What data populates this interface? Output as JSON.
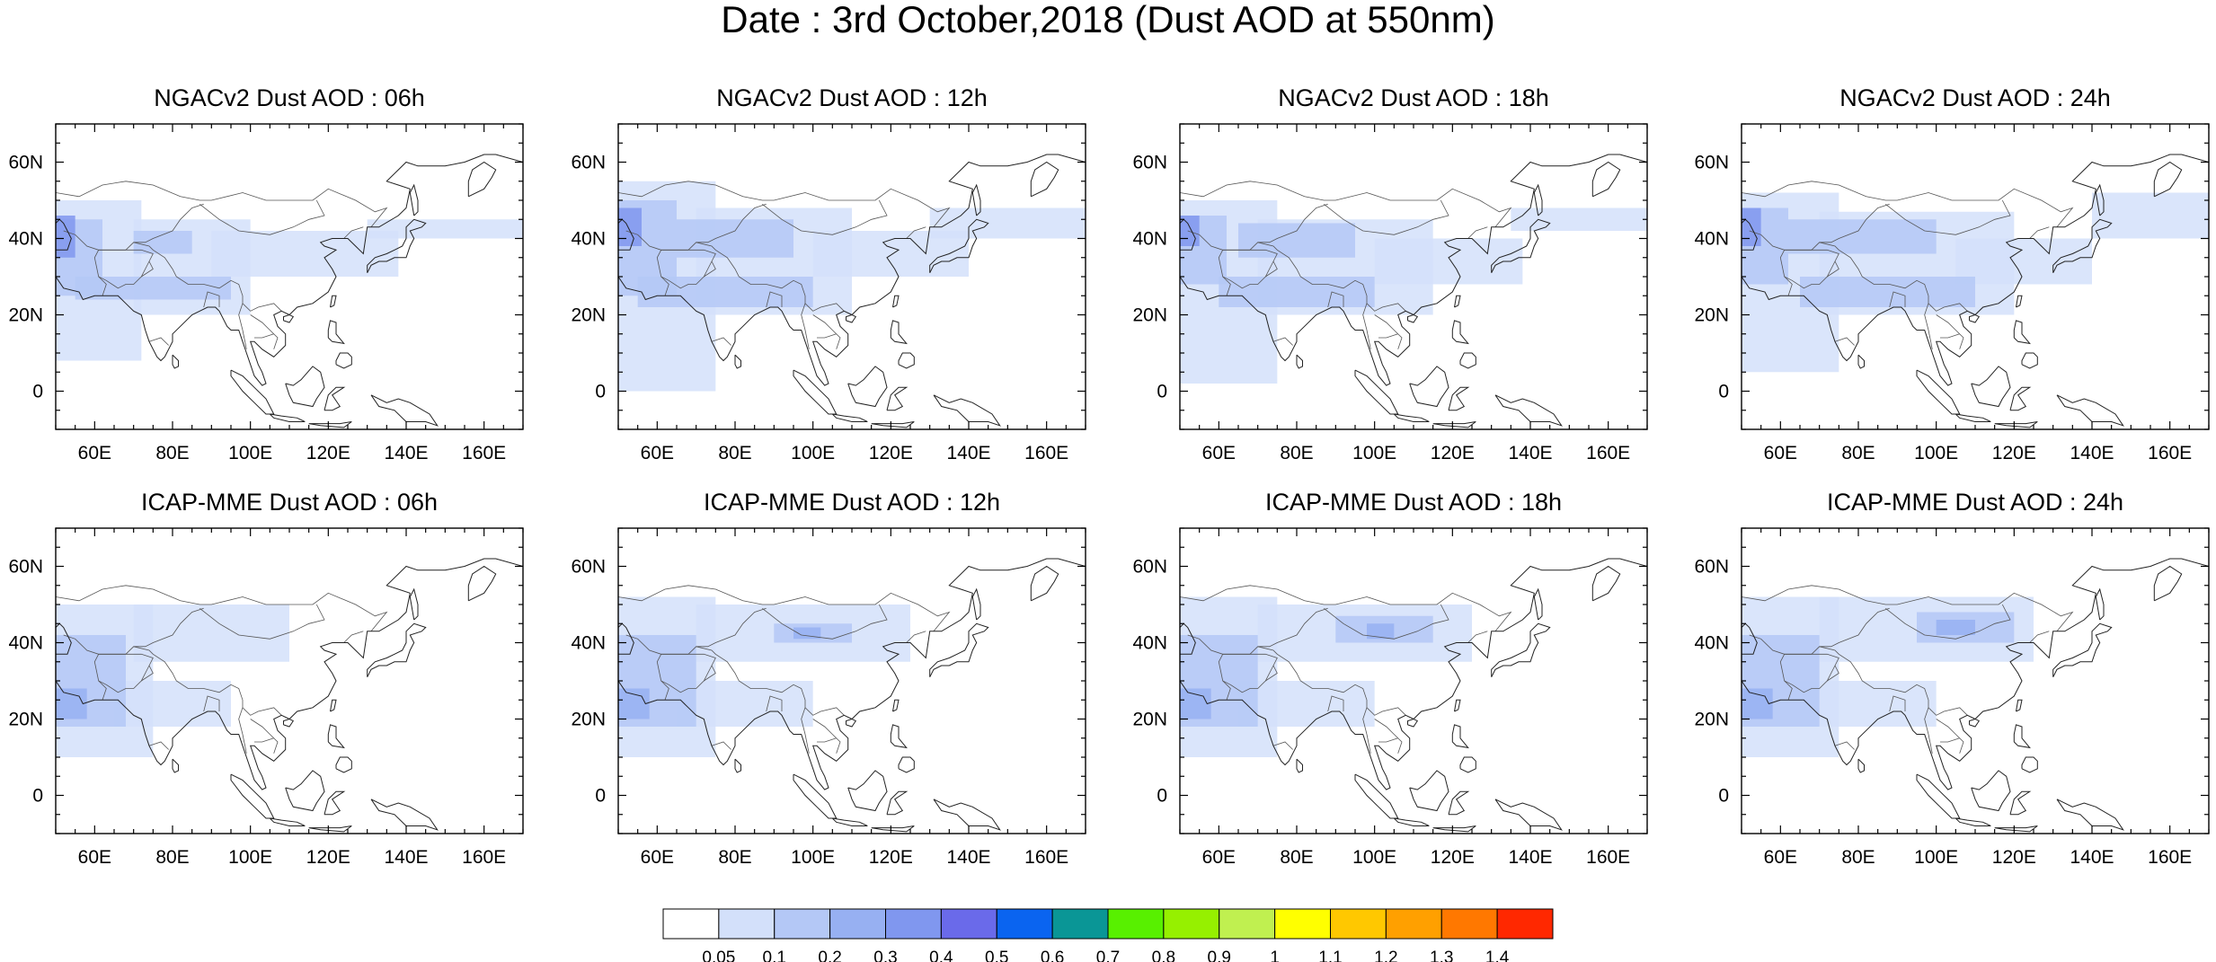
{
  "figure": {
    "title": "Date : 3rd October,2018 (Dust AOD at 550nm)"
  },
  "map": {
    "lon_range": [
      50,
      170
    ],
    "lat_range": [
      -10,
      70
    ],
    "lon_ticks": [
      {
        "value": 60,
        "label": "60E"
      },
      {
        "value": 80,
        "label": "80E"
      },
      {
        "value": 100,
        "label": "100E"
      },
      {
        "value": 120,
        "label": "120E"
      },
      {
        "value": 140,
        "label": "140E"
      },
      {
        "value": 160,
        "label": "160E"
      }
    ],
    "lat_ticks": [
      {
        "value": 60,
        "label": "60N"
      },
      {
        "value": 40,
        "label": "40N"
      },
      {
        "value": 20,
        "label": "20N"
      },
      {
        "value": 0,
        "label": "0"
      }
    ]
  },
  "panels": [
    {
      "title": "NGACv2 Dust AOD : 06h",
      "model": "NGACv2",
      "lead": "06h"
    },
    {
      "title": "NGACv2 Dust AOD : 12h",
      "model": "NGACv2",
      "lead": "12h"
    },
    {
      "title": "NGACv2 Dust AOD : 18h",
      "model": "NGACv2",
      "lead": "18h"
    },
    {
      "title": "NGACv2 Dust AOD : 24h",
      "model": "NGACv2",
      "lead": "24h"
    },
    {
      "title": "ICAP-MME Dust AOD : 06h",
      "model": "ICAP-MME",
      "lead": "06h"
    },
    {
      "title": "ICAP-MME Dust AOD : 12h",
      "model": "ICAP-MME",
      "lead": "12h"
    },
    {
      "title": "ICAP-MME Dust AOD : 18h",
      "model": "ICAP-MME",
      "lead": "18h"
    },
    {
      "title": "ICAP-MME Dust AOD : 24h",
      "model": "ICAP-MME",
      "lead": "24h"
    }
  ],
  "colorbar": {
    "colors": [
      "#ffffff",
      "#d3e0fa",
      "#b4c8f6",
      "#97b0f2",
      "#8097ef",
      "#6a6aea",
      "#0a64f0",
      "#0a9696",
      "#58f000",
      "#96f000",
      "#c0f050",
      "#ffff00",
      "#ffc800",
      "#ffa000",
      "#ff7800",
      "#ff2800"
    ],
    "labels": [
      "0.05",
      "0.1",
      "0.2",
      "0.3",
      "0.4",
      "0.5",
      "0.6",
      "0.7",
      "0.8",
      "0.9",
      "1",
      "1.1",
      "1.2",
      "1.3",
      "1.4"
    ]
  },
  "dust_fields": {
    "NGACv2": [
      [
        {
          "lon": [
            50,
            72
          ],
          "lat": [
            8,
            50
          ],
          "level": 1
        },
        {
          "lon": [
            70,
            100
          ],
          "lat": [
            20,
            45
          ],
          "level": 1
        },
        {
          "lon": [
            90,
            138
          ],
          "lat": [
            30,
            42
          ],
          "level": 1
        },
        {
          "lon": [
            130,
            170
          ],
          "lat": [
            40,
            45
          ],
          "level": 1
        },
        {
          "lon": [
            50,
            62
          ],
          "lat": [
            25,
            45
          ],
          "level": 2
        },
        {
          "lon": [
            70,
            85
          ],
          "lat": [
            36,
            42
          ],
          "level": 2
        },
        {
          "lon": [
            55,
            95
          ],
          "lat": [
            24,
            30
          ],
          "level": 2
        },
        {
          "lon": [
            50,
            55
          ],
          "lat": [
            35,
            46
          ],
          "level": 4
        }
      ],
      [
        {
          "lon": [
            50,
            75
          ],
          "lat": [
            0,
            55
          ],
          "level": 1
        },
        {
          "lon": [
            70,
            110
          ],
          "lat": [
            20,
            48
          ],
          "level": 1
        },
        {
          "lon": [
            100,
            140
          ],
          "lat": [
            30,
            42
          ],
          "level": 1
        },
        {
          "lon": [
            130,
            170
          ],
          "lat": [
            40,
            48
          ],
          "level": 1
        },
        {
          "lon": [
            50,
            65
          ],
          "lat": [
            25,
            50
          ],
          "level": 2
        },
        {
          "lon": [
            65,
            95
          ],
          "lat": [
            35,
            45
          ],
          "level": 2
        },
        {
          "lon": [
            55,
            100
          ],
          "lat": [
            22,
            30
          ],
          "level": 2
        },
        {
          "lon": [
            50,
            56
          ],
          "lat": [
            38,
            48
          ],
          "level": 4
        }
      ],
      [
        {
          "lon": [
            50,
            75
          ],
          "lat": [
            2,
            50
          ],
          "level": 1
        },
        {
          "lon": [
            70,
            115
          ],
          "lat": [
            20,
            45
          ],
          "level": 1
        },
        {
          "lon": [
            100,
            138
          ],
          "lat": [
            28,
            40
          ],
          "level": 1
        },
        {
          "lon": [
            135,
            170
          ],
          "lat": [
            42,
            48
          ],
          "level": 1
        },
        {
          "lon": [
            50,
            62
          ],
          "lat": [
            28,
            46
          ],
          "level": 2
        },
        {
          "lon": [
            65,
            95
          ],
          "lat": [
            35,
            44
          ],
          "level": 2
        },
        {
          "lon": [
            60,
            100
          ],
          "lat": [
            22,
            30
          ],
          "level": 2
        },
        {
          "lon": [
            50,
            55
          ],
          "lat": [
            38,
            46
          ],
          "level": 4
        }
      ],
      [
        {
          "lon": [
            50,
            75
          ],
          "lat": [
            5,
            52
          ],
          "level": 1
        },
        {
          "lon": [
            70,
            120
          ],
          "lat": [
            20,
            47
          ],
          "level": 1
        },
        {
          "lon": [
            105,
            140
          ],
          "lat": [
            28,
            40
          ],
          "level": 1
        },
        {
          "lon": [
            140,
            170
          ],
          "lat": [
            40,
            52
          ],
          "level": 1
        },
        {
          "lon": [
            50,
            62
          ],
          "lat": [
            28,
            48
          ],
          "level": 2
        },
        {
          "lon": [
            62,
            100
          ],
          "lat": [
            36,
            45
          ],
          "level": 2
        },
        {
          "lon": [
            65,
            110
          ],
          "lat": [
            22,
            30
          ],
          "level": 2
        },
        {
          "lon": [
            50,
            55
          ],
          "lat": [
            38,
            48
          ],
          "level": 4
        }
      ]
    ],
    "ICAP-MME": [
      [
        {
          "lon": [
            50,
            75
          ],
          "lat": [
            10,
            50
          ],
          "level": 1
        },
        {
          "lon": [
            70,
            110
          ],
          "lat": [
            35,
            50
          ],
          "level": 1
        },
        {
          "lon": [
            65,
            95
          ],
          "lat": [
            18,
            30
          ],
          "level": 1
        },
        {
          "lon": [
            50,
            68
          ],
          "lat": [
            18,
            42
          ],
          "level": 2
        },
        {
          "lon": [
            50,
            58
          ],
          "lat": [
            20,
            28
          ],
          "level": 3
        }
      ],
      [
        {
          "lon": [
            50,
            75
          ],
          "lat": [
            10,
            52
          ],
          "level": 1
        },
        {
          "lon": [
            70,
            125
          ],
          "lat": [
            35,
            50
          ],
          "level": 1
        },
        {
          "lon": [
            65,
            100
          ],
          "lat": [
            18,
            30
          ],
          "level": 1
        },
        {
          "lon": [
            50,
            70
          ],
          "lat": [
            18,
            42
          ],
          "level": 2
        },
        {
          "lon": [
            90,
            110
          ],
          "lat": [
            40,
            45
          ],
          "level": 2
        },
        {
          "lon": [
            95,
            102
          ],
          "lat": [
            41,
            44
          ],
          "level": 3
        },
        {
          "lon": [
            50,
            58
          ],
          "lat": [
            20,
            28
          ],
          "level": 3
        }
      ],
      [
        {
          "lon": [
            50,
            75
          ],
          "lat": [
            10,
            52
          ],
          "level": 1
        },
        {
          "lon": [
            70,
            125
          ],
          "lat": [
            35,
            50
          ],
          "level": 1
        },
        {
          "lon": [
            65,
            100
          ],
          "lat": [
            18,
            30
          ],
          "level": 1
        },
        {
          "lon": [
            50,
            70
          ],
          "lat": [
            18,
            42
          ],
          "level": 2
        },
        {
          "lon": [
            90,
            115
          ],
          "lat": [
            40,
            47
          ],
          "level": 2
        },
        {
          "lon": [
            98,
            105
          ],
          "lat": [
            41,
            45
          ],
          "level": 3
        },
        {
          "lon": [
            50,
            58
          ],
          "lat": [
            20,
            28
          ],
          "level": 3
        }
      ],
      [
        {
          "lon": [
            50,
            75
          ],
          "lat": [
            10,
            52
          ],
          "level": 1
        },
        {
          "lon": [
            70,
            125
          ],
          "lat": [
            35,
            52
          ],
          "level": 1
        },
        {
          "lon": [
            65,
            100
          ],
          "lat": [
            18,
            30
          ],
          "level": 1
        },
        {
          "lon": [
            50,
            70
          ],
          "lat": [
            18,
            42
          ],
          "level": 2
        },
        {
          "lon": [
            95,
            120
          ],
          "lat": [
            40,
            48
          ],
          "level": 2
        },
        {
          "lon": [
            100,
            110
          ],
          "lat": [
            42,
            46
          ],
          "level": 3
        },
        {
          "lon": [
            50,
            58
          ],
          "lat": [
            20,
            28
          ],
          "level": 3
        }
      ]
    ]
  }
}
